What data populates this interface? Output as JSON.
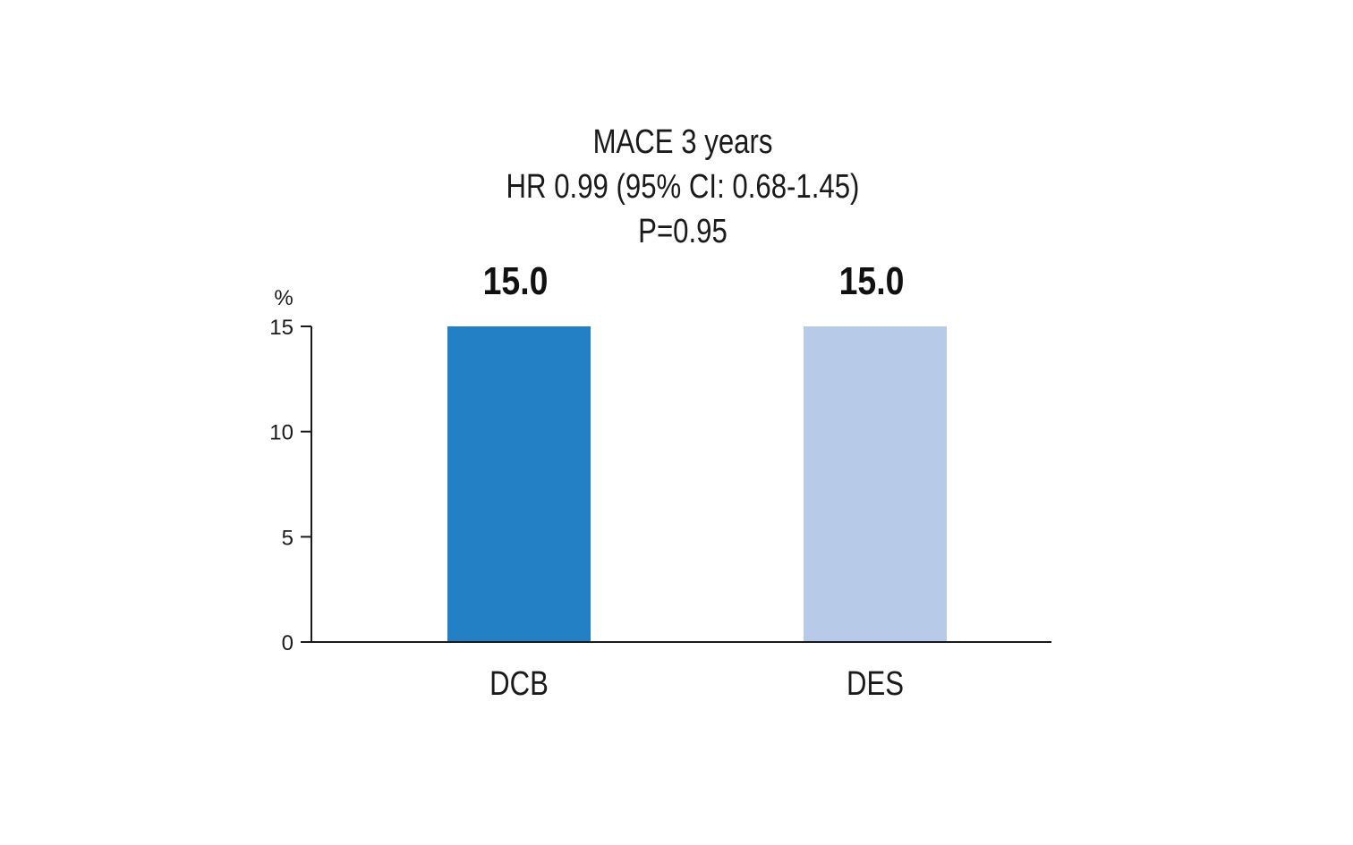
{
  "chart_data": {
    "type": "bar",
    "title_lines": [
      "MACE 3 years",
      "HR 0.99 (95% CI: 0.68-1.45)",
      "P=0.95"
    ],
    "ylabel": "%",
    "xlabel": "",
    "categories": [
      "DCB",
      "DES"
    ],
    "values": [
      15.0,
      15.0
    ],
    "data_labels": [
      "15.0",
      "15.0"
    ],
    "bar_colors": [
      "#2480c4",
      "#b7cbe8"
    ],
    "ylim": [
      0,
      15
    ],
    "yticks": [
      0,
      5,
      10,
      15
    ],
    "ytick_labels": [
      "0",
      "5",
      "10",
      "15"
    ],
    "grid": false,
    "legend": "none"
  }
}
